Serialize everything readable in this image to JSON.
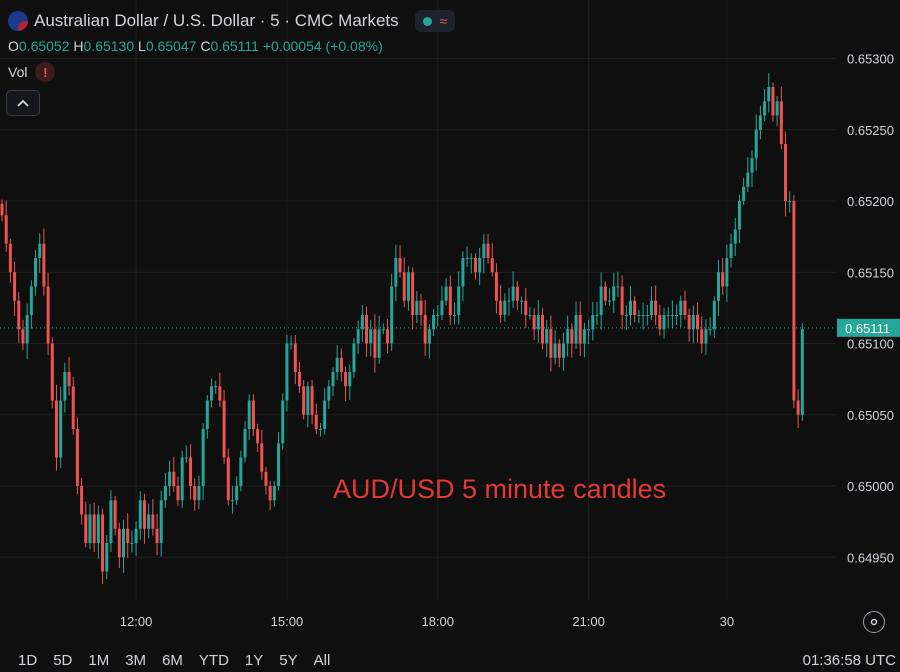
{
  "header": {
    "title": "Australian Dollar / U.S. Dollar · 5 · CMC Markets",
    "flag_icon": "aud-usd-flag-icon",
    "status_dot_color": "#26a69a",
    "wave_glyph": "≈"
  },
  "ohlc": {
    "o_label": "O",
    "o": "0.65052",
    "h_label": "H",
    "h": "0.65130",
    "l_label": "L",
    "l": "0.65047",
    "c_label": "C",
    "c": "0.65111",
    "change": "+0.00054 (+0.08%)"
  },
  "volume": {
    "label": "Vol",
    "warning_glyph": "!"
  },
  "colors": {
    "up": "#26a69a",
    "down": "#ef5350",
    "grid": "#1e1e1e",
    "axis_text": "#d1d4dc",
    "annotation": "#e53935"
  },
  "chart_data": {
    "type": "candlestick",
    "annotation": "AUD/USD 5 minute candles",
    "ylim": [
      0.6492,
      0.6532
    ],
    "y_ticks": [
      "0.65300",
      "0.65250",
      "0.65200",
      "0.65150",
      "0.65100",
      "0.65050",
      "0.65000",
      "0.64950"
    ],
    "x_ticks": [
      {
        "label": "12:00",
        "index": 32
      },
      {
        "label": "15:00",
        "index": 68
      },
      {
        "label": "18:00",
        "index": 104
      },
      {
        "label": "21:00",
        "index": 140
      },
      {
        "label": "30",
        "index": 173
      }
    ],
    "last_price": "0.65111",
    "last_price_value": 0.65111,
    "closes": [
      0.6519,
      0.6517,
      0.6515,
      0.6513,
      0.6511,
      0.651,
      0.6512,
      0.6514,
      0.6516,
      0.6517,
      0.6514,
      0.651,
      0.6506,
      0.6502,
      0.6506,
      0.6508,
      0.6507,
      0.6504,
      0.65,
      0.6498,
      0.6496,
      0.6498,
      0.6496,
      0.6498,
      0.6494,
      0.6496,
      0.6499,
      0.6497,
      0.6495,
      0.6497,
      0.6496,
      0.6496,
      0.6497,
      0.6499,
      0.6497,
      0.6498,
      0.6497,
      0.6496,
      0.6499,
      0.65,
      0.6501,
      0.65,
      0.6499,
      0.6502,
      0.6502,
      0.65,
      0.6499,
      0.65,
      0.6504,
      0.6506,
      0.6507,
      0.6507,
      0.6506,
      0.6502,
      0.6499,
      0.6499,
      0.65,
      0.6502,
      0.6504,
      0.6506,
      0.6504,
      0.6503,
      0.6501,
      0.65,
      0.6499,
      0.65,
      0.6503,
      0.6506,
      0.651,
      0.651,
      0.6508,
      0.6507,
      0.6505,
      0.6507,
      0.6505,
      0.6504,
      0.6504,
      0.6506,
      0.6507,
      0.6508,
      0.6509,
      0.6508,
      0.6507,
      0.6508,
      0.651,
      0.6511,
      0.6512,
      0.651,
      0.6511,
      0.6509,
      0.6511,
      0.6511,
      0.651,
      0.6514,
      0.6516,
      0.6515,
      0.6513,
      0.6515,
      0.6512,
      0.6513,
      0.6512,
      0.651,
      0.6511,
      0.6512,
      0.6512,
      0.6513,
      0.6514,
      0.6512,
      0.6512,
      0.6514,
      0.6516,
      0.6516,
      0.6516,
      0.6515,
      0.6516,
      0.6517,
      0.6516,
      0.6515,
      0.6513,
      0.6512,
      0.6513,
      0.6513,
      0.6514,
      0.6513,
      0.6513,
      0.6512,
      0.6512,
      0.6511,
      0.6512,
      0.651,
      0.6511,
      0.6509,
      0.651,
      0.6509,
      0.651,
      0.6511,
      0.651,
      0.6512,
      0.651,
      0.6511,
      0.6511,
      0.6512,
      0.6512,
      0.6514,
      0.6513,
      0.6513,
      0.6514,
      0.6514,
      0.6512,
      0.6512,
      0.6513,
      0.6512,
      0.6512,
      0.6512,
      0.6512,
      0.6513,
      0.6512,
      0.6511,
      0.6512,
      0.6512,
      0.6512,
      0.6512,
      0.6513,
      0.6512,
      0.6511,
      0.6512,
      0.6511,
      0.651,
      0.6511,
      0.6511,
      0.6513,
      0.6515,
      0.6514,
      0.6516,
      0.6517,
      0.6518,
      0.652,
      0.6521,
      0.6522,
      0.6523,
      0.6525,
      0.6526,
      0.6527,
      0.6528,
      0.6526,
      0.6527,
      0.6524,
      0.652,
      0.652,
      0.6506,
      0.6505,
      0.6511
    ]
  },
  "time_ranges": [
    "1D",
    "5D",
    "1M",
    "3M",
    "6M",
    "YTD",
    "1Y",
    "5Y",
    "All"
  ],
  "clock": "01:36:58 UTC"
}
